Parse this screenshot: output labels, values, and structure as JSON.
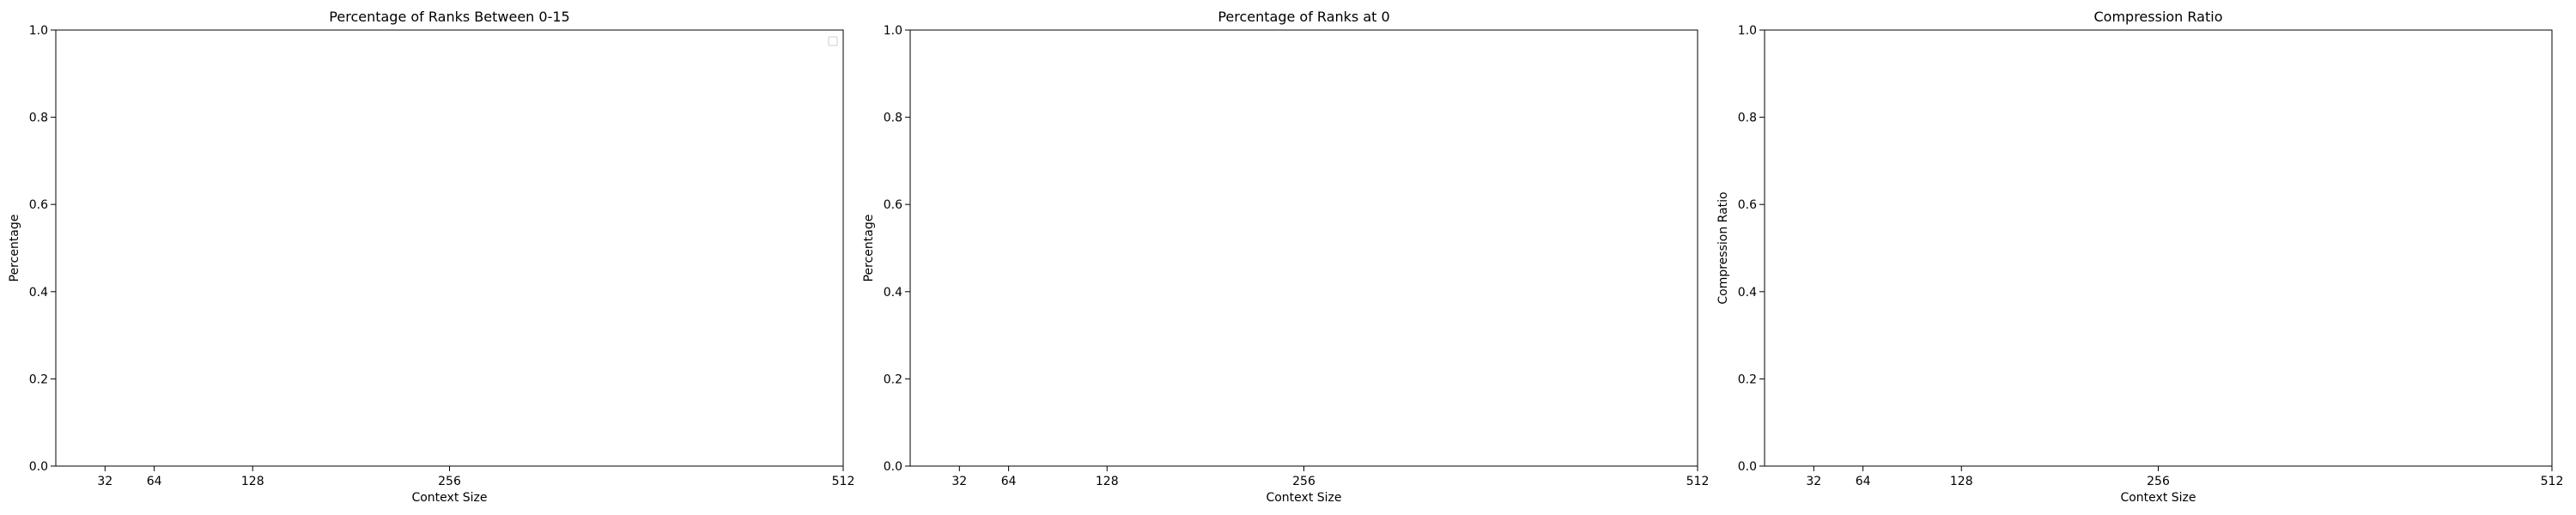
{
  "chart_data": [
    {
      "type": "line",
      "title": "Percentage of Ranks Between 0-15",
      "xlabel": "Context Size",
      "ylabel": "Percentage",
      "x_ticks": [
        32,
        64,
        128,
        256,
        512
      ],
      "xlim": [
        0,
        512
      ],
      "ylim": [
        0,
        1
      ],
      "y_ticks": [
        0.0,
        0.2,
        0.4,
        0.6,
        0.8,
        1.0
      ],
      "series": [],
      "legend": "upper-right",
      "grid": false
    },
    {
      "type": "line",
      "title": "Percentage of Ranks at 0",
      "xlabel": "Context Size",
      "ylabel": "Percentage",
      "x_ticks": [
        32,
        64,
        128,
        256,
        512
      ],
      "xlim": [
        0,
        512
      ],
      "ylim": [
        0,
        1
      ],
      "y_ticks": [
        0.0,
        0.2,
        0.4,
        0.6,
        0.8,
        1.0
      ],
      "series": [],
      "grid": false
    },
    {
      "type": "line",
      "title": "Compression Ratio",
      "xlabel": "Context Size",
      "ylabel": "Compression Ratio",
      "x_ticks": [
        32,
        64,
        128,
        256,
        512
      ],
      "xlim": [
        0,
        512
      ],
      "ylim": [
        0,
        1
      ],
      "y_ticks": [
        0.0,
        0.2,
        0.4,
        0.6,
        0.8,
        1.0
      ],
      "series": [],
      "grid": false
    }
  ]
}
